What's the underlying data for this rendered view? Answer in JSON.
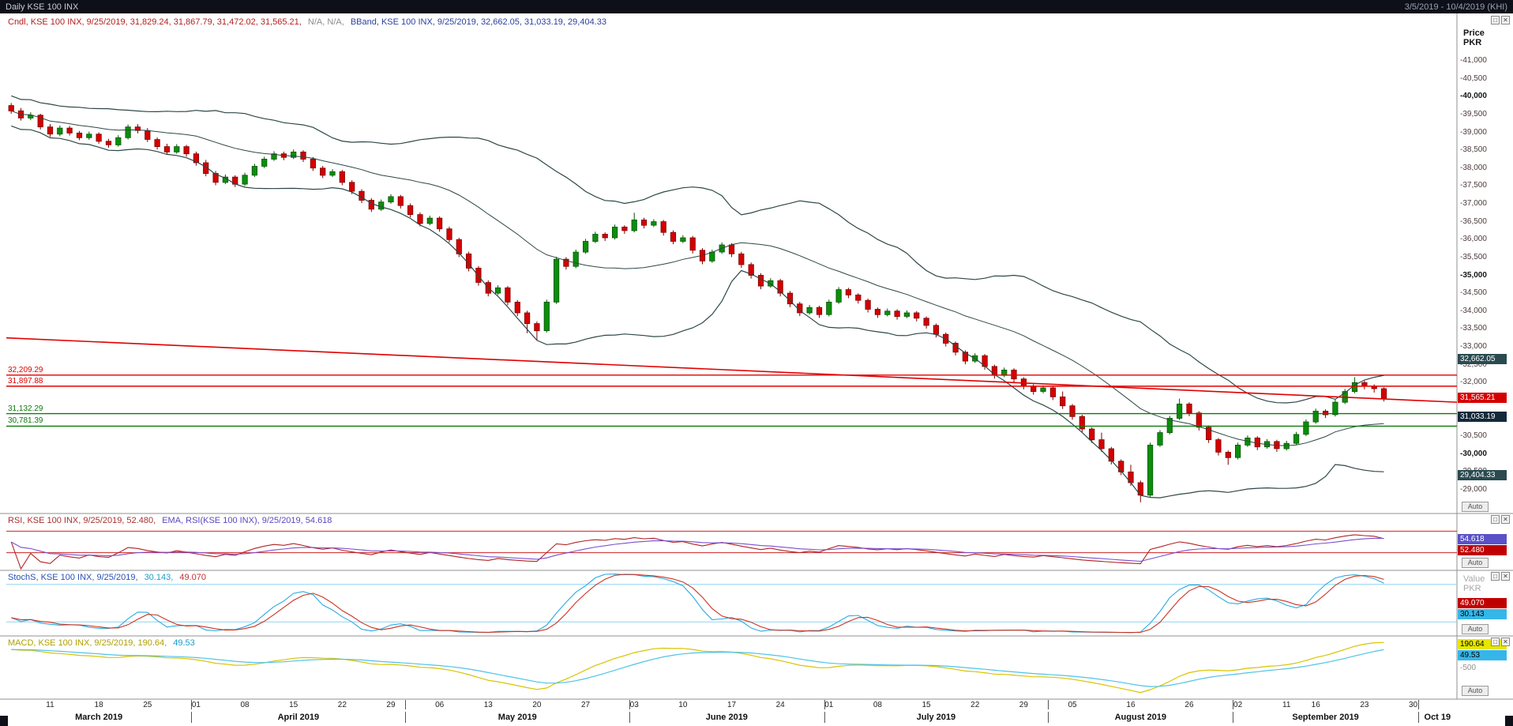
{
  "title_bar": {
    "title": "Daily KSE 100 INX",
    "range": "3/5/2019 - 10/4/2019 (KHI)"
  },
  "icons": {
    "maximize_icon": "□",
    "close_icon": "✕"
  },
  "main_panel": {
    "legend": {
      "cndl": "Cndl, KSE 100 INX, 9/25/2019, 31,829.24, 31,867.79, 31,472.02, 31,565.21,",
      "na": "N/A, N/A,",
      "bband": "BBand, KSE 100 INX, 9/25/2019, 32,662.05, 31,033.19, 29,404.33"
    },
    "axis_title": "Price PKR",
    "auto_label": "Auto",
    "price_tags": [
      {
        "text": "32,662.05",
        "price": 32662.05,
        "bg": "#2a4a50",
        "fg": "#ffffff"
      },
      {
        "text": "31,565.21",
        "price": 31565.21,
        "bg": "#d40000",
        "fg": "#ffffff"
      },
      {
        "text": "31,033.19",
        "price": 31033.19,
        "bg": "#13293a",
        "fg": "#ffffff"
      },
      {
        "text": "29,404.33",
        "price": 29404.33,
        "bg": "#2a4a50",
        "fg": "#ffffff"
      }
    ]
  },
  "rsi_panel": {
    "legend_rsi": "RSI, KSE 100 INX, 9/25/2019, 52.480,",
    "legend_ema": "EMA, RSI(KSE 100 INX), 9/25/2019, 54.618",
    "tags": [
      {
        "text": "54.618",
        "bg": "#5a50c8",
        "fg": "#ffffff"
      },
      {
        "text": "52.480",
        "bg": "#c00000",
        "fg": "#ffffff"
      }
    ]
  },
  "stoch_panel": {
    "legend_label": "StochS, KSE 100 INX, 9/25/2019,",
    "legend_k": "30.143,",
    "legend_d": "49.070",
    "axis_title": "Value PKR",
    "tags": [
      {
        "text": "49.070",
        "bg": "#c00000",
        "fg": "#ffffff"
      },
      {
        "text": "30.143",
        "bg": "#35b6e8",
        "fg": "#000000"
      }
    ]
  },
  "macd_panel": {
    "legend_macd": "MACD, KSE 100 INX, 9/25/2019, 190.64,",
    "legend_signal": "49.53",
    "axis_label": "-500",
    "tags": [
      {
        "text": "190.64",
        "bg": "#e6e600",
        "fg": "#000000"
      },
      {
        "text": "49.53",
        "bg": "#35b6e8",
        "fg": "#000000"
      }
    ]
  },
  "colors": {
    "background": "#ffffff",
    "titlebar_bg": "#0e1019",
    "up": "#0a8f0a",
    "up_border": "#055505",
    "down": "#d40000",
    "down_border": "#7d0000",
    "bband": "#2e4747",
    "resistance": "#e00000",
    "support": "#0a7a0a",
    "trendline": "#e00000",
    "rsi": "#b22222",
    "rsi_ema": "#7a4fd2",
    "rsi_ref": "#cc2222",
    "stoch_k": "#29abe2",
    "stoch_d": "#cc3322",
    "stoch_ref": "#8fd4f2",
    "macd": "#d9c300",
    "macd_signal": "#4fc3e8",
    "grid": "#909090"
  },
  "chart_data": {
    "type": "candlestick",
    "title": "Daily KSE 100 INX",
    "symbol": "KSE 100 INX",
    "interval": "Daily",
    "date_range": "3/5/2019 - 10/4/2019",
    "last": {
      "date": "9/25/2019",
      "open": 31829.24,
      "high": 31867.79,
      "low": 31472.02,
      "close": 31565.21
    },
    "indicators": {
      "bband": {
        "upper": 32662.05,
        "middle": 31033.19,
        "lower": 29404.33
      },
      "rsi": {
        "value": 52.48,
        "ema": 54.618
      },
      "stochs": {
        "k": 30.143,
        "d": 49.07
      },
      "macd": {
        "macd": 190.64,
        "signal": 49.53
      }
    },
    "y_axis": {
      "min": 29000,
      "max": 41000,
      "step": 500,
      "bold_step": 5000,
      "unit": "PKR"
    },
    "levels": {
      "resistance": [
        {
          "price": 32209.29,
          "label": "32,209.29"
        },
        {
          "price": 31897.88,
          "label": "31,897.88"
        }
      ],
      "support": [
        {
          "price": 31132.29,
          "label": "31,132.29"
        },
        {
          "price": 30781.39,
          "label": "30,781.39"
        }
      ],
      "trendline": {
        "start_price": 33250,
        "end_price": 31450
      }
    },
    "total_slots": 149,
    "x_ticks": [
      {
        "label": "11",
        "slot": 4
      },
      {
        "label": "18",
        "slot": 9
      },
      {
        "label": "25",
        "slot": 14
      },
      {
        "label": "01",
        "slot": 19
      },
      {
        "label": "08",
        "slot": 24
      },
      {
        "label": "15",
        "slot": 29
      },
      {
        "label": "22",
        "slot": 34
      },
      {
        "label": "29",
        "slot": 39
      },
      {
        "label": "06",
        "slot": 44
      },
      {
        "label": "13",
        "slot": 49
      },
      {
        "label": "20",
        "slot": 54
      },
      {
        "label": "27",
        "slot": 59
      },
      {
        "label": "03",
        "slot": 64
      },
      {
        "label": "10",
        "slot": 69
      },
      {
        "label": "17",
        "slot": 74
      },
      {
        "label": "24",
        "slot": 79
      },
      {
        "label": "01",
        "slot": 84
      },
      {
        "label": "08",
        "slot": 89
      },
      {
        "label": "15",
        "slot": 94
      },
      {
        "label": "22",
        "slot": 99
      },
      {
        "label": "29",
        "slot": 104
      },
      {
        "label": "05",
        "slot": 109
      },
      {
        "label": "16",
        "slot": 115
      },
      {
        "label": "26",
        "slot": 121
      },
      {
        "label": "02",
        "slot": 126
      },
      {
        "label": "11",
        "slot": 131
      },
      {
        "label": "16",
        "slot": 134
      },
      {
        "label": "23",
        "slot": 139
      },
      {
        "label": "30",
        "slot": 144
      }
    ],
    "months": [
      {
        "label": "March 2019",
        "start": 0,
        "end": 19
      },
      {
        "label": "April 2019",
        "start": 19,
        "end": 41
      },
      {
        "label": "May 2019",
        "start": 41,
        "end": 64
      },
      {
        "label": "June 2019",
        "start": 64,
        "end": 84
      },
      {
        "label": "July 2019",
        "start": 84,
        "end": 107
      },
      {
        "label": "August 2019",
        "start": 107,
        "end": 126
      },
      {
        "label": "September 2019",
        "start": 126,
        "end": 145
      },
      {
        "label": "Oct 19",
        "start": 145,
        "end": 149
      }
    ],
    "candles": [
      [
        39750,
        39820,
        39520,
        39600
      ],
      [
        39600,
        39680,
        39330,
        39400
      ],
      [
        39400,
        39560,
        39340,
        39480
      ],
      [
        39480,
        39520,
        39080,
        39150
      ],
      [
        39150,
        39230,
        38870,
        38950
      ],
      [
        38950,
        39190,
        38890,
        39120
      ],
      [
        39120,
        39180,
        38910,
        38980
      ],
      [
        38980,
        39040,
        38780,
        38850
      ],
      [
        38850,
        39020,
        38790,
        38950
      ],
      [
        38950,
        39000,
        38680,
        38750
      ],
      [
        38750,
        38820,
        38570,
        38650
      ],
      [
        38650,
        38920,
        38600,
        38850
      ],
      [
        38850,
        39220,
        38800,
        39150
      ],
      [
        39150,
        39230,
        38970,
        39050
      ],
      [
        39050,
        39120,
        38730,
        38800
      ],
      [
        38800,
        38860,
        38520,
        38600
      ],
      [
        38600,
        38680,
        38370,
        38450
      ],
      [
        38450,
        38670,
        38400,
        38600
      ],
      [
        38600,
        38650,
        38320,
        38400
      ],
      [
        38400,
        38460,
        38070,
        38150
      ],
      [
        38150,
        38230,
        37770,
        37850
      ],
      [
        37850,
        37920,
        37520,
        37600
      ],
      [
        37600,
        37820,
        37550,
        37750
      ],
      [
        37750,
        37800,
        37470,
        37550
      ],
      [
        37550,
        37870,
        37500,
        37800
      ],
      [
        37800,
        38120,
        37750,
        38050
      ],
      [
        38050,
        38320,
        38000,
        38250
      ],
      [
        38250,
        38470,
        38200,
        38400
      ],
      [
        38400,
        38460,
        38220,
        38300
      ],
      [
        38300,
        38520,
        38250,
        38450
      ],
      [
        38450,
        38500,
        38170,
        38250
      ],
      [
        38250,
        38310,
        37920,
        38000
      ],
      [
        38000,
        38060,
        37720,
        37800
      ],
      [
        37800,
        37970,
        37750,
        37900
      ],
      [
        37900,
        37950,
        37520,
        37600
      ],
      [
        37600,
        37660,
        37270,
        37350
      ],
      [
        37350,
        37410,
        37020,
        37100
      ],
      [
        37100,
        37160,
        36770,
        36850
      ],
      [
        36850,
        37120,
        36800,
        37050
      ],
      [
        37050,
        37270,
        37000,
        37200
      ],
      [
        37200,
        37250,
        36870,
        36950
      ],
      [
        36950,
        37010,
        36620,
        36700
      ],
      [
        36700,
        36760,
        36370,
        36450
      ],
      [
        36450,
        36670,
        36400,
        36600
      ],
      [
        36600,
        36650,
        36220,
        36300
      ],
      [
        36300,
        36360,
        35920,
        36000
      ],
      [
        36000,
        36050,
        35510,
        35600
      ],
      [
        35600,
        35660,
        35110,
        35200
      ],
      [
        35200,
        35260,
        34710,
        34800
      ],
      [
        34800,
        34860,
        34410,
        34500
      ],
      [
        34500,
        34720,
        34450,
        34650
      ],
      [
        34650,
        34700,
        34160,
        34250
      ],
      [
        34250,
        34310,
        33860,
        33950
      ],
      [
        33950,
        34010,
        33380,
        33650
      ],
      [
        33650,
        33710,
        33180,
        33450
      ],
      [
        33450,
        34320,
        33400,
        34250
      ],
      [
        34250,
        35520,
        34200,
        35450
      ],
      [
        35450,
        35510,
        35160,
        35250
      ],
      [
        35250,
        35720,
        35200,
        35650
      ],
      [
        35650,
        36020,
        35600,
        35950
      ],
      [
        35950,
        36220,
        35900,
        36150
      ],
      [
        36150,
        36200,
        35960,
        36050
      ],
      [
        36050,
        36420,
        36000,
        36350
      ],
      [
        36350,
        36400,
        36160,
        36250
      ],
      [
        36250,
        36750,
        36200,
        36550
      ],
      [
        36550,
        36610,
        36310,
        36400
      ],
      [
        36400,
        36570,
        36350,
        36500
      ],
      [
        36500,
        36550,
        36110,
        36200
      ],
      [
        36200,
        36260,
        35870,
        35950
      ],
      [
        35950,
        36120,
        35900,
        36050
      ],
      [
        36050,
        36100,
        35610,
        35700
      ],
      [
        35700,
        35760,
        35310,
        35400
      ],
      [
        35400,
        35720,
        35350,
        35650
      ],
      [
        35650,
        35920,
        35600,
        35850
      ],
      [
        35850,
        35900,
        35510,
        35600
      ],
      [
        35600,
        35660,
        35210,
        35300
      ],
      [
        35300,
        35360,
        34910,
        35000
      ],
      [
        35000,
        35060,
        34610,
        34700
      ],
      [
        34700,
        34920,
        34650,
        34850
      ],
      [
        34850,
        34900,
        34410,
        34500
      ],
      [
        34500,
        34560,
        34110,
        34200
      ],
      [
        34200,
        34260,
        33860,
        33950
      ],
      [
        33950,
        34170,
        33900,
        34100
      ],
      [
        34100,
        34150,
        33810,
        33900
      ],
      [
        33900,
        34320,
        33850,
        34250
      ],
      [
        34250,
        34670,
        34200,
        34600
      ],
      [
        34600,
        34650,
        34360,
        34450
      ],
      [
        34450,
        34500,
        34210,
        34300
      ],
      [
        34300,
        34350,
        33960,
        34050
      ],
      [
        34050,
        34100,
        33810,
        33900
      ],
      [
        33900,
        34070,
        33850,
        34000
      ],
      [
        34000,
        34050,
        33760,
        33850
      ],
      [
        33850,
        34020,
        33800,
        33950
      ],
      [
        33950,
        34000,
        33710,
        33800
      ],
      [
        33800,
        33850,
        33510,
        33600
      ],
      [
        33600,
        33650,
        33260,
        33350
      ],
      [
        33350,
        33400,
        33010,
        33100
      ],
      [
        33100,
        33150,
        32760,
        32850
      ],
      [
        32850,
        32900,
        32510,
        32600
      ],
      [
        32600,
        32820,
        32550,
        32750
      ],
      [
        32750,
        32800,
        32360,
        32450
      ],
      [
        32450,
        32500,
        32110,
        32200
      ],
      [
        32200,
        32420,
        32150,
        32350
      ],
      [
        32350,
        32400,
        32010,
        32100
      ],
      [
        32100,
        32150,
        31810,
        31900
      ],
      [
        31900,
        31950,
        31660,
        31750
      ],
      [
        31750,
        31920,
        31700,
        31850
      ],
      [
        31850,
        31900,
        31510,
        31600
      ],
      [
        31600,
        31750,
        31260,
        31350
      ],
      [
        31350,
        31400,
        30960,
        31050
      ],
      [
        31050,
        31100,
        30610,
        30700
      ],
      [
        30700,
        30750,
        30310,
        30400
      ],
      [
        30400,
        30600,
        30060,
        30150
      ],
      [
        30150,
        30200,
        29710,
        29800
      ],
      [
        29800,
        29850,
        29410,
        29500
      ],
      [
        29500,
        29700,
        29110,
        29200
      ],
      [
        29200,
        29260,
        28650,
        28850
      ],
      [
        28850,
        30320,
        28800,
        30250
      ],
      [
        30250,
        30670,
        30200,
        30600
      ],
      [
        30600,
        31070,
        30550,
        31000
      ],
      [
        31000,
        31550,
        30950,
        31400
      ],
      [
        31400,
        31450,
        31060,
        31150
      ],
      [
        31150,
        31200,
        30660,
        30750
      ],
      [
        30750,
        30800,
        30310,
        30400
      ],
      [
        30400,
        30450,
        29960,
        30050
      ],
      [
        30050,
        30100,
        29700,
        29900
      ],
      [
        29900,
        30320,
        29850,
        30250
      ],
      [
        30250,
        30520,
        30200,
        30450
      ],
      [
        30450,
        30500,
        30110,
        30200
      ],
      [
        30200,
        30420,
        30150,
        30350
      ],
      [
        30350,
        30400,
        30060,
        30150
      ],
      [
        30150,
        30370,
        30100,
        30300
      ],
      [
        30300,
        30620,
        30250,
        30550
      ],
      [
        30550,
        30970,
        30500,
        30900
      ],
      [
        30900,
        31270,
        30850,
        31200
      ],
      [
        31200,
        31250,
        31010,
        31100
      ],
      [
        31100,
        31520,
        31050,
        31450
      ],
      [
        31450,
        31820,
        31400,
        31750
      ],
      [
        31750,
        32150,
        31700,
        32000
      ],
      [
        32000,
        32050,
        31810,
        31900
      ],
      [
        31900,
        31950,
        31720,
        31830
      ],
      [
        31829.24,
        31867.79,
        31472.02,
        31565.21
      ]
    ]
  }
}
